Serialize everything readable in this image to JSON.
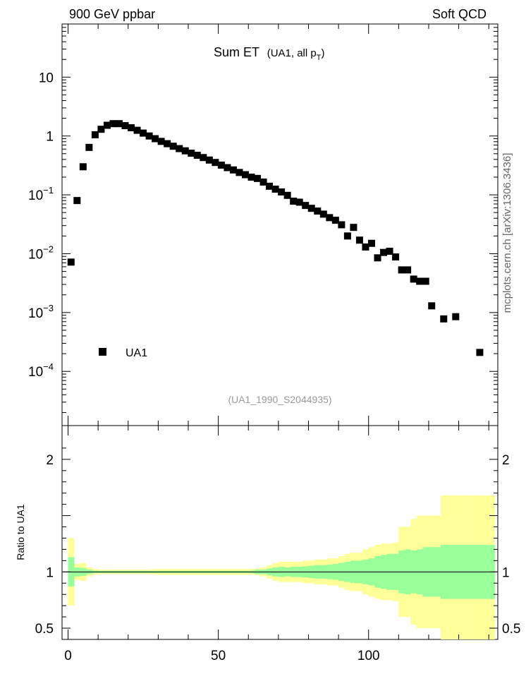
{
  "header": {
    "left_label": "900 GeV ppbar",
    "right_label": "Soft QCD"
  },
  "side_label": "mcplots.cern.ch [arXiv:1306.3436]",
  "chart_data": {
    "type": "scatter",
    "title": "Sum ET",
    "title_note_prefix": "(UA1, all p",
    "title_note_sub": "T",
    "title_note_suffix": ")",
    "analysis_tag": "(UA1_1990_S2044935)",
    "legend": {
      "label": "UA1",
      "placement": "left"
    },
    "log_y": true,
    "xlim": [
      -2,
      143
    ],
    "ylim": [
      1.2e-05,
      80
    ],
    "x_ticks": [
      0,
      50,
      100
    ],
    "y_ticks": [
      {
        "value": 10,
        "mantissa": "10",
        "exp": ""
      },
      {
        "value": 1,
        "mantissa": "1",
        "exp": ""
      },
      {
        "value": 0.1,
        "mantissa": "10",
        "exp": "−1"
      },
      {
        "value": 0.01,
        "mantissa": "10",
        "exp": "−2"
      },
      {
        "value": 0.001,
        "mantissa": "10",
        "exp": "−3"
      },
      {
        "value": 0.0001,
        "mantissa": "10",
        "exp": "−4"
      }
    ],
    "series": [
      {
        "name": "UA1",
        "color": "#000000",
        "x": [
          1,
          3,
          5,
          7,
          9,
          11,
          13,
          15,
          17,
          19,
          21,
          23,
          25,
          27,
          29,
          31,
          33,
          35,
          37,
          39,
          41,
          43,
          45,
          47,
          49,
          51,
          53,
          55,
          57,
          59,
          61,
          63,
          65,
          67,
          69,
          71,
          73,
          75,
          77,
          79,
          81,
          83,
          85,
          87,
          89,
          91,
          93,
          95,
          97,
          99,
          101,
          103,
          105,
          107,
          109,
          111,
          113,
          115,
          117,
          119,
          121,
          125,
          129,
          137
        ],
        "y": [
          0.0072,
          0.08,
          0.3,
          0.64,
          1.05,
          1.3,
          1.52,
          1.62,
          1.62,
          1.5,
          1.38,
          1.25,
          1.12,
          1.0,
          0.9,
          0.81,
          0.74,
          0.67,
          0.61,
          0.56,
          0.51,
          0.47,
          0.43,
          0.39,
          0.355,
          0.32,
          0.29,
          0.265,
          0.24,
          0.22,
          0.2,
          0.19,
          0.165,
          0.14,
          0.125,
          0.112,
          0.098,
          0.078,
          0.075,
          0.066,
          0.059,
          0.053,
          0.047,
          0.041,
          0.037,
          0.031,
          0.02,
          0.028,
          0.017,
          0.013,
          0.015,
          0.0085,
          0.0105,
          0.011,
          0.0088,
          0.0053,
          0.0053,
          0.0037,
          0.0034,
          0.0034,
          0.0013,
          0.00078,
          0.00085,
          0.00021
        ]
      }
    ],
    "ratio": {
      "ylabel": "Ratio to UA1",
      "ylim": [
        0.4,
        2.3
      ],
      "y_ticks": [
        {
          "value": 2,
          "label": "2"
        },
        {
          "value": 1,
          "label": "1"
        },
        {
          "value": 0.5,
          "label": "0.5"
        }
      ],
      "bin_width": 2,
      "bin_centers": [
        1,
        3,
        5,
        7,
        9,
        11,
        13,
        15,
        17,
        19,
        21,
        23,
        25,
        27,
        29,
        31,
        33,
        35,
        37,
        39,
        41,
        43,
        45,
        47,
        49,
        51,
        53,
        55,
        57,
        59,
        61,
        63,
        65,
        67,
        69,
        71,
        73,
        75,
        77,
        79,
        81,
        83,
        85,
        87,
        89,
        91,
        93,
        95,
        97,
        99,
        101,
        103,
        105,
        107,
        109,
        111,
        113,
        115,
        117,
        119,
        121,
        123,
        125,
        127,
        129,
        131,
        133,
        135,
        137,
        139,
        141
      ],
      "stat_band": [
        0.13,
        0.04,
        0.035,
        0.02,
        0.012,
        0.01,
        0.01,
        0.01,
        0.01,
        0.01,
        0.01,
        0.01,
        0.01,
        0.01,
        0.01,
        0.01,
        0.01,
        0.01,
        0.01,
        0.01,
        0.01,
        0.01,
        0.01,
        0.01,
        0.01,
        0.01,
        0.01,
        0.01,
        0.01,
        0.01,
        0.01,
        0.02,
        0.02,
        0.03,
        0.04,
        0.045,
        0.04,
        0.045,
        0.045,
        0.05,
        0.055,
        0.06,
        0.06,
        0.065,
        0.07,
        0.08,
        0.09,
        0.1,
        0.1,
        0.11,
        0.12,
        0.14,
        0.15,
        0.16,
        0.16,
        0.19,
        0.2,
        0.19,
        0.2,
        0.22,
        0.22,
        0.22,
        0.24,
        0.24,
        0.24,
        0.24,
        0.24,
        0.24,
        0.24,
        0.24,
        0.24
      ],
      "total_band": [
        0.3,
        0.07,
        0.08,
        0.04,
        0.025,
        0.02,
        0.02,
        0.02,
        0.02,
        0.02,
        0.02,
        0.02,
        0.02,
        0.02,
        0.025,
        0.025,
        0.025,
        0.025,
        0.025,
        0.025,
        0.025,
        0.025,
        0.025,
        0.025,
        0.025,
        0.025,
        0.025,
        0.025,
        0.025,
        0.025,
        0.025,
        0.03,
        0.04,
        0.06,
        0.08,
        0.09,
        0.09,
        0.09,
        0.09,
        0.1,
        0.1,
        0.11,
        0.11,
        0.12,
        0.12,
        0.14,
        0.16,
        0.17,
        0.17,
        0.2,
        0.22,
        0.24,
        0.25,
        0.25,
        0.26,
        0.4,
        0.4,
        0.47,
        0.5,
        0.5,
        0.5,
        0.5,
        0.68,
        0.68,
        0.68,
        0.68,
        0.68,
        0.68,
        0.68,
        0.68,
        0.68
      ]
    }
  }
}
